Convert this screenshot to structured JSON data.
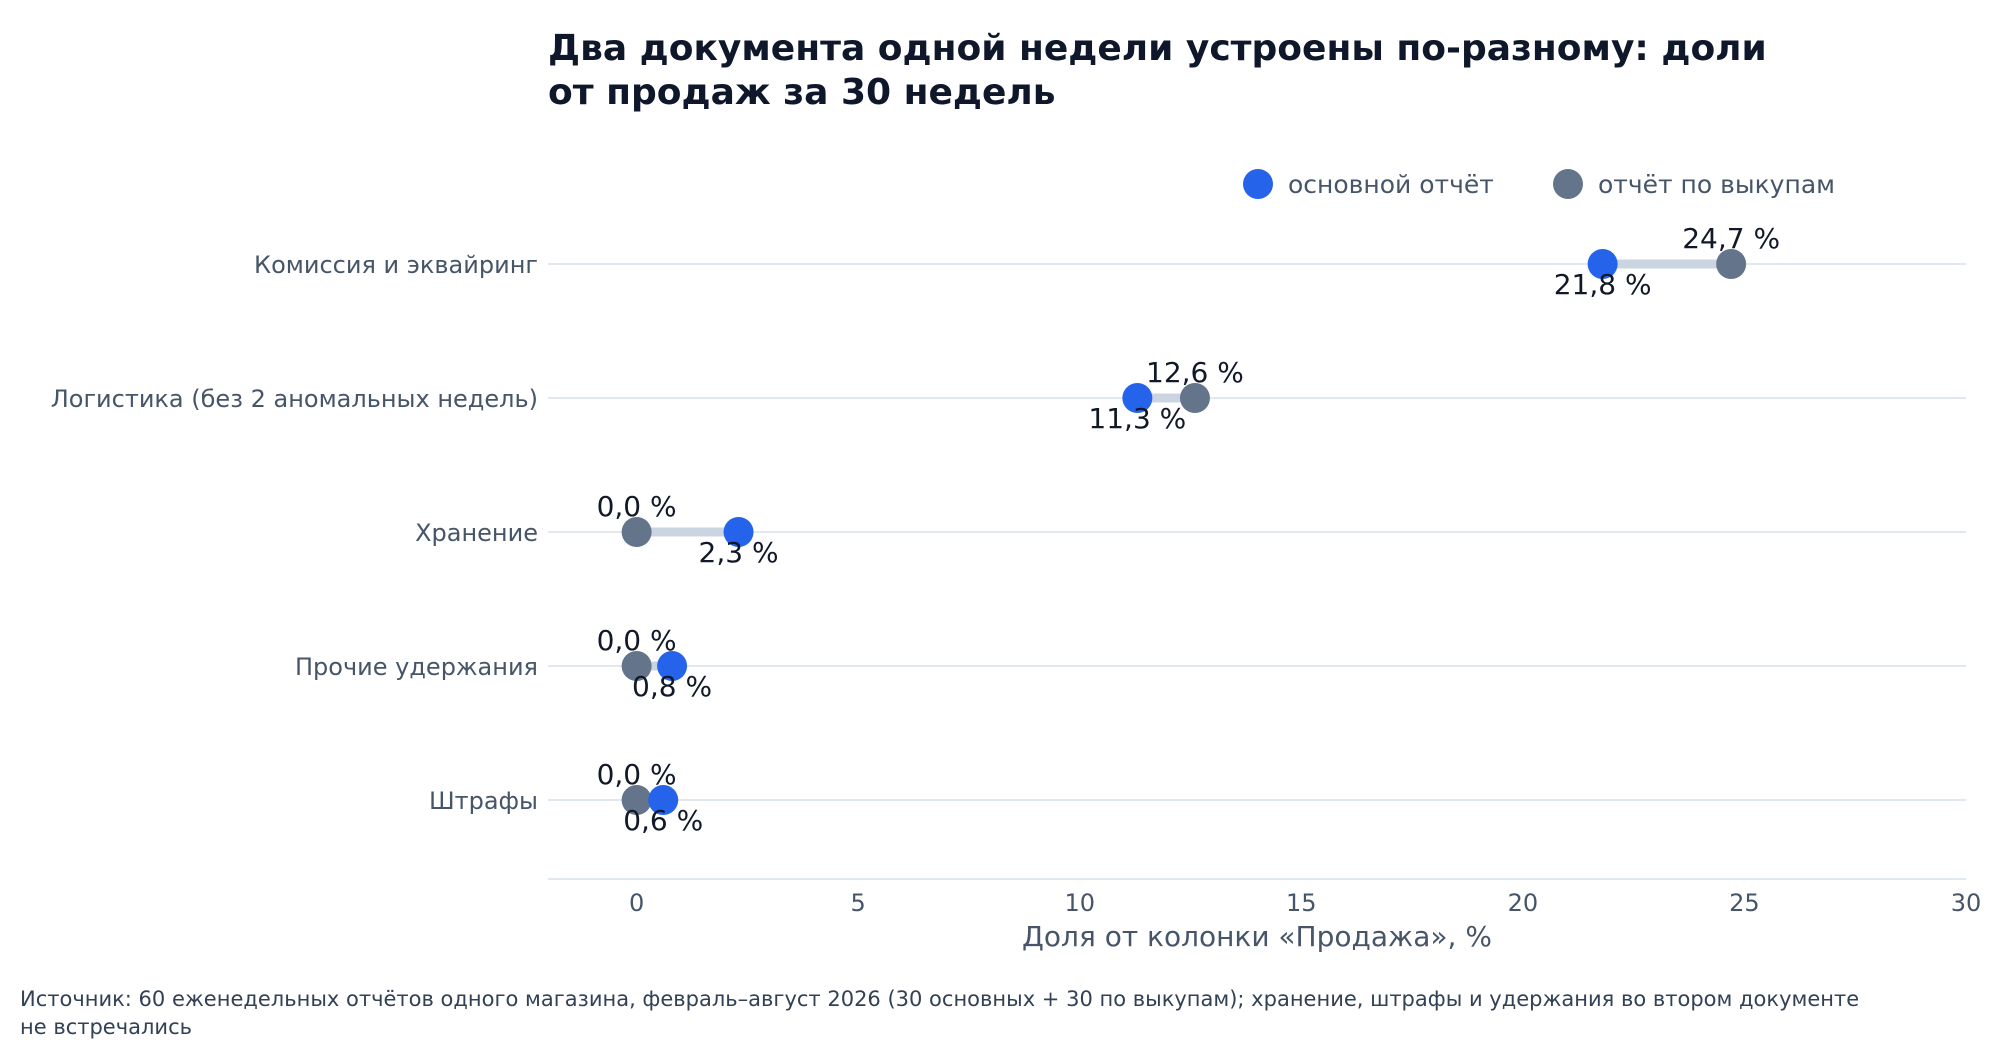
{
  "chart_data": {
    "type": "dumbbell",
    "title_lines": [
      "Два документа одной недели устроены по-разному: доли",
      "от продаж за 30 недель"
    ],
    "xlabel": "Доля от колонки «Продажа», %",
    "xlim": [
      -2,
      30
    ],
    "xticks": [
      0,
      5,
      10,
      15,
      20,
      25,
      30
    ],
    "tick_labels": [
      "0",
      "5",
      "10",
      "15",
      "20",
      "25",
      "30"
    ],
    "grid": "horizontal",
    "legend_position": "top-right",
    "categories": [
      "Комиссия и эквайринг",
      "Логистика (без 2 аномальных недель)",
      "Хранение",
      "Прочие удержания",
      "Штрафы"
    ],
    "series": [
      {
        "name": "основной отчёт",
        "color": "#2563eb",
        "values": [
          21.8,
          11.3,
          2.3,
          0.8,
          0.6
        ],
        "labels": [
          "21,8 %",
          "11,3 %",
          "2,3 %",
          "0,8 %",
          "0,6 %"
        ]
      },
      {
        "name": "отчёт по выкупам",
        "color": "#64748b",
        "values": [
          24.7,
          12.6,
          0.0,
          0.0,
          0.0
        ],
        "labels": [
          "24,7 %",
          "12,6 %",
          "0,0 %",
          "0,0 %",
          "0,0 %"
        ]
      }
    ],
    "connector_color": "#cbd5e1",
    "source_lines": [
      "Источник: 60 еженедельных отчётов одного магазина, февраль–август 2026 (30 основных + 30 по выкупам); хранение, штрафы и удержания во втором документе",
      "не встречались"
    ]
  }
}
